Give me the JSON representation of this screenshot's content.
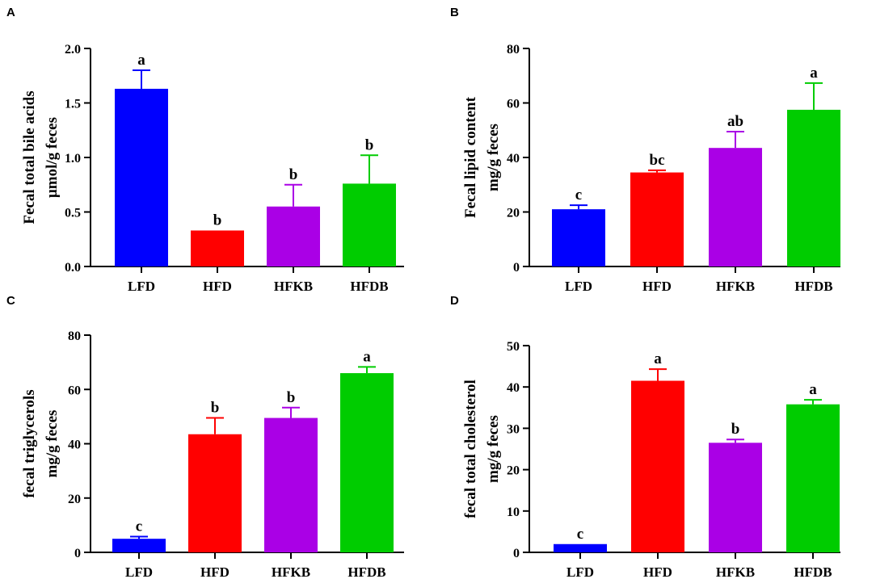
{
  "colors": {
    "LFD": "#0000ff",
    "HFD": "#ff0000",
    "HFKB": "#aa00e6",
    "HFDB": "#00cc00",
    "axis": "#000000"
  },
  "chart_data": [
    {
      "panel": "A",
      "type": "bar",
      "ylabel_lines": [
        "Fecal total bile acids",
        "μmol/g feces"
      ],
      "categories": [
        "LFD",
        "HFD",
        "HFKB",
        "HFDB"
      ],
      "values": [
        1.63,
        0.33,
        0.55,
        0.76
      ],
      "errors": [
        0.17,
        0.0,
        0.2,
        0.26
      ],
      "significance": [
        "a",
        "b",
        "b",
        "b"
      ],
      "ylim": [
        0,
        2.0
      ],
      "yticks": [
        0,
        0.5,
        1.0,
        1.5,
        2.0
      ],
      "ytick_labels": [
        "0.0",
        "0.5",
        "1.0",
        "1.5",
        "2.0"
      ]
    },
    {
      "panel": "B",
      "type": "bar",
      "ylabel_lines": [
        "Fecal lipid content",
        "mg/g feces"
      ],
      "categories": [
        "LFD",
        "HFD",
        "HFKB",
        "HFDB"
      ],
      "values": [
        21,
        34.5,
        43.5,
        57.5
      ],
      "errors": [
        1.5,
        0.8,
        6,
        9.8
      ],
      "significance": [
        "c",
        "bc",
        "ab",
        "a"
      ],
      "ylim": [
        0,
        80
      ],
      "yticks": [
        0,
        20,
        40,
        60,
        80
      ],
      "ytick_labels": [
        "0",
        "20",
        "40",
        "60",
        "80"
      ]
    },
    {
      "panel": "C",
      "type": "bar",
      "ylabel_lines": [
        "fecal triglycerols",
        "mg/g feces"
      ],
      "categories": [
        "LFD",
        "HFD",
        "HFKB",
        "HFDB"
      ],
      "values": [
        5,
        43.5,
        49.5,
        66
      ],
      "errors": [
        0.8,
        6,
        3.8,
        2.3
      ],
      "significance": [
        "c",
        "b",
        "b",
        "a"
      ],
      "ylim": [
        0,
        80
      ],
      "yticks": [
        0,
        20,
        40,
        60,
        80
      ],
      "ytick_labels": [
        "0",
        "20",
        "40",
        "60",
        "80"
      ]
    },
    {
      "panel": "D",
      "type": "bar",
      "ylabel_lines": [
        "fecal total cholesterol",
        "mg/g feces"
      ],
      "categories": [
        "LFD",
        "HFD",
        "HFKB",
        "HFDB"
      ],
      "values": [
        2,
        41.5,
        26.5,
        35.8
      ],
      "errors": [
        0,
        2.8,
        0.8,
        1.1
      ],
      "significance": [
        "c",
        "a",
        "b",
        "a"
      ],
      "ylim": [
        0,
        50
      ],
      "yticks": [
        0,
        10,
        20,
        30,
        40,
        50
      ],
      "ytick_labels": [
        "0",
        "10",
        "20",
        "30",
        "40",
        "50"
      ]
    }
  ]
}
